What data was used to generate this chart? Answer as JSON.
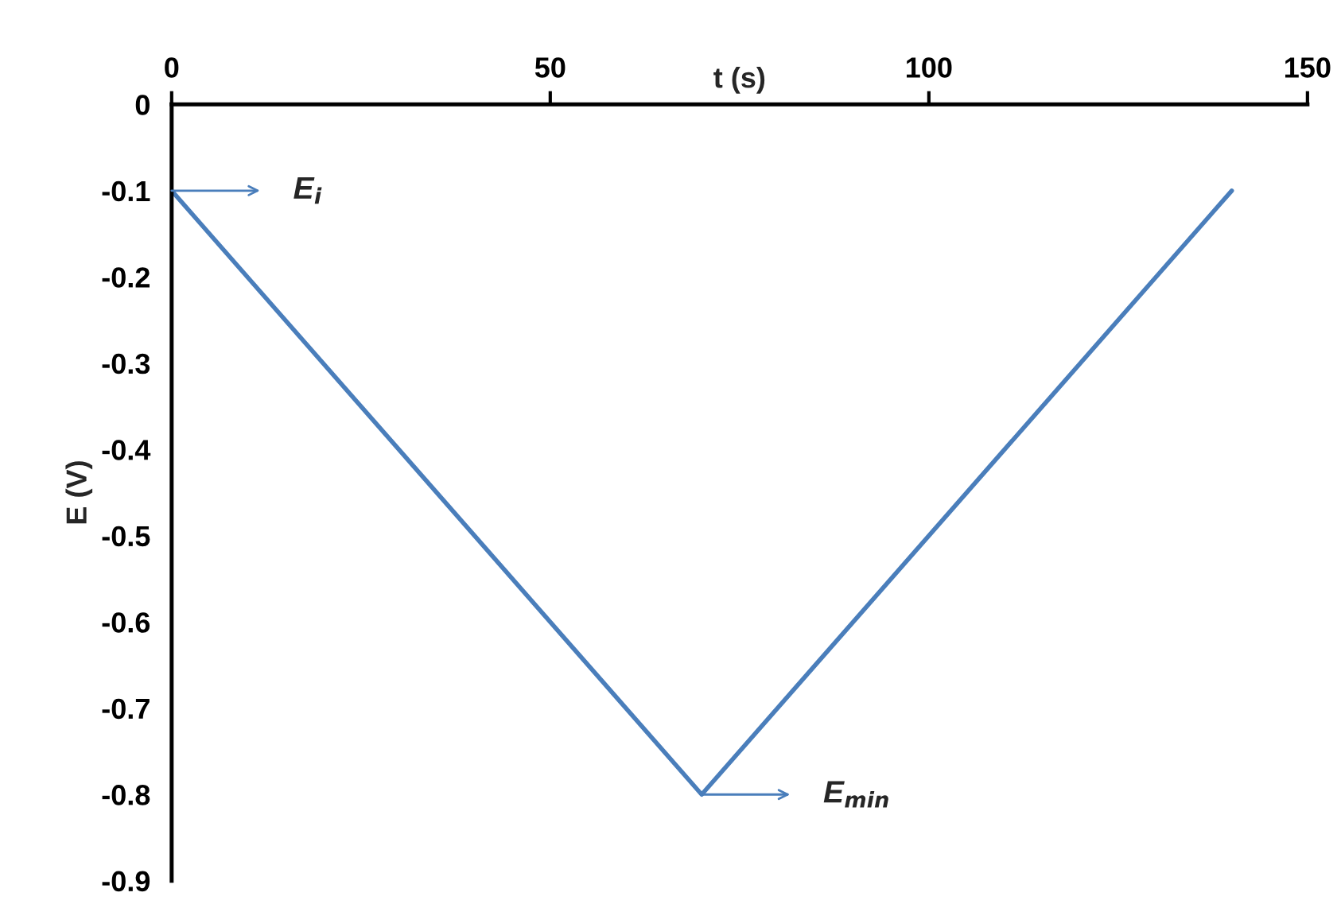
{
  "chart_data": {
    "type": "line",
    "xlabel": "t (s)",
    "ylabel": "E (V)",
    "x": [
      0,
      70,
      140
    ],
    "series": [
      {
        "color": "#4a7ebb",
        "values": [
          -0.1,
          -0.8,
          -0.1
        ]
      }
    ],
    "xlim": [
      0,
      150
    ],
    "xticks": [
      0,
      50,
      100,
      150
    ],
    "ylim": [
      -0.9,
      0
    ],
    "yticks": [
      0,
      {
        "value": -0.1,
        "label": "-0.1"
      },
      {
        "value": -0.2,
        "label": "-0.2"
      },
      {
        "value": -0.3,
        "label": "-0.3"
      },
      {
        "value": -0.4,
        "label": "-0.4"
      },
      {
        "value": -0.5,
        "label": "-0.5"
      },
      {
        "value": -0.6,
        "label": "-0.6"
      },
      {
        "value": -0.7,
        "label": "-0.7"
      },
      {
        "value": -0.8,
        "label": "-0.8"
      },
      {
        "value": -0.9,
        "label": "-0.9"
      }
    ],
    "grid": false,
    "marker": "none",
    "line_style": "solid",
    "annotations": [
      "E$_{i}$",
      "E$_{min}$"
    ]
  }
}
